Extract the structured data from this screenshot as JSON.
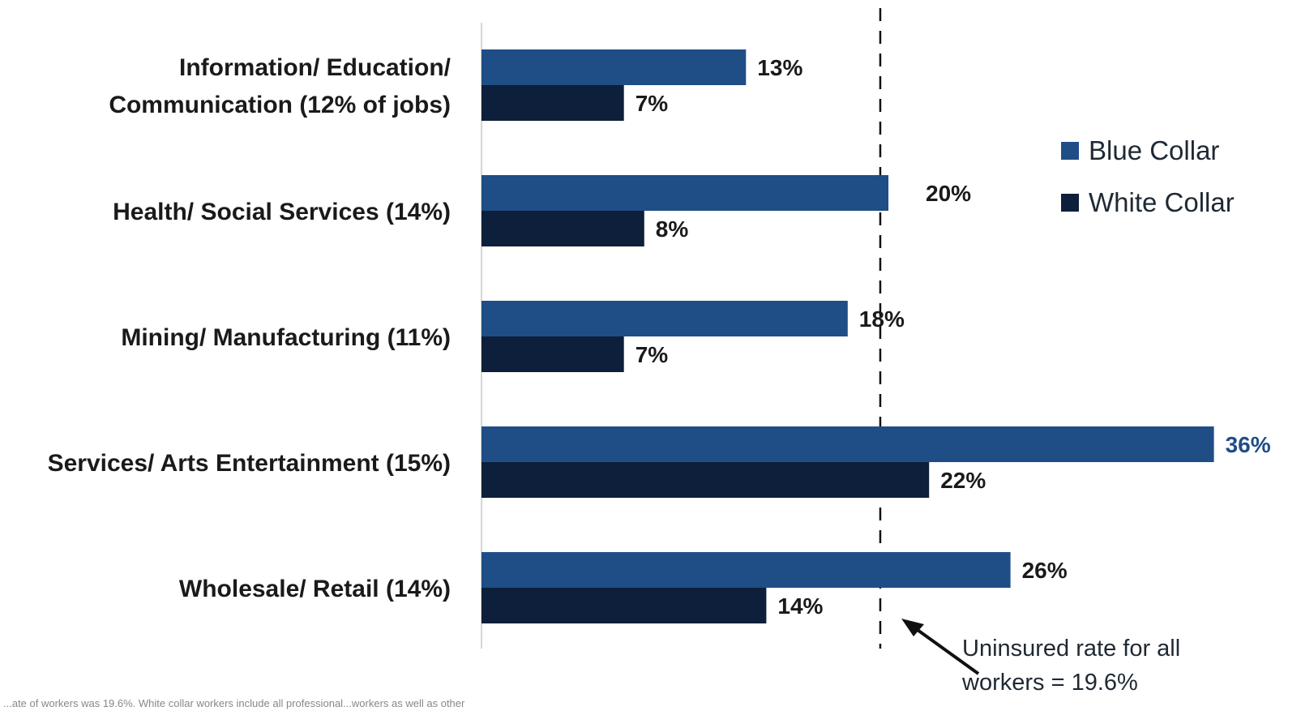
{
  "chart_data": {
    "type": "bar",
    "orientation": "horizontal",
    "categories": [
      [
        "Information/ Education/",
        "Communication (12% of jobs)"
      ],
      [
        "Health/ Social Services (14%)"
      ],
      [
        "Mining/ Manufacturing (11%)"
      ],
      [
        "Services/ Arts Entertainment (15%)"
      ],
      [
        "Wholesale/ Retail (14%)"
      ]
    ],
    "series": [
      {
        "name": "Blue Collar",
        "color": "#1f4e86",
        "values": [
          13,
          20,
          18,
          36,
          26
        ],
        "labels": [
          "13%",
          "20%",
          "18%",
          "36%",
          "26%"
        ]
      },
      {
        "name": "White Collar",
        "color": "#0d1f3a",
        "values": [
          7,
          8,
          7,
          22,
          14
        ],
        "labels": [
          "7%",
          "8%",
          "7%",
          "22%",
          "14%"
        ]
      }
    ],
    "xlim": [
      0,
      40
    ],
    "reference_line": {
      "value": 19.6,
      "annotation": [
        "Uninsured rate for all",
        "workers = 19.6%"
      ]
    },
    "legend_position": "right",
    "grid": false
  },
  "footnote": "...ate of workers was 19.6%. White collar workers include all professional...workers as well as other"
}
